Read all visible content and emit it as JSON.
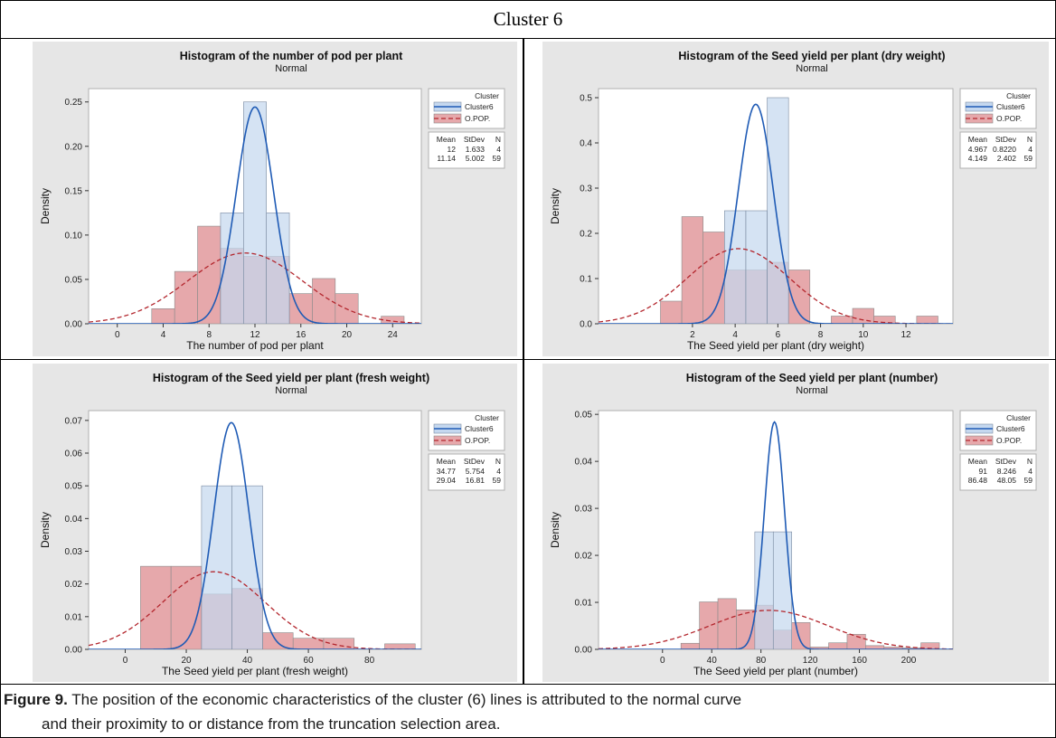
{
  "cluster_title": "Cluster 6",
  "caption": {
    "label": "Figure 9.",
    "text1": " The position of the economic characteristics of the cluster (6) lines is attributed to the normal curve",
    "text2": "and their proximity to or distance from the truncation selection area."
  },
  "colors": {
    "cluster_fill": "#c5d8ef",
    "cluster_line": "#1f5bb5",
    "pop_fill": "#e6a8ab",
    "pop_line": "#b3262d",
    "overlap_fill": "#c4a5ad",
    "panel_bg": "#e6e6e6"
  },
  "chart_data": [
    {
      "type": "bar",
      "title": "Histogram of the number of pod per plant",
      "subtitle": "Normal",
      "xlabel": "The number of pod per plant",
      "ylabel": "Density",
      "xlim": [
        -2.5,
        26.5
      ],
      "ylim": [
        0,
        0.265
      ],
      "xticks": [
        0,
        4,
        8,
        12,
        16,
        20,
        24
      ],
      "yticks": [
        0,
        0.05,
        0.1,
        0.15,
        0.2,
        0.25
      ],
      "ytick_labels": [
        "0.00",
        "0.05",
        "0.10",
        "0.15",
        "0.20",
        "0.25"
      ],
      "legend_title": "Cluster",
      "series": [
        {
          "name": "Cluster6",
          "role": "cluster",
          "bin_edges": [
            9,
            11,
            13,
            15
          ],
          "values": [
            0.125,
            0.25,
            0.125
          ]
        },
        {
          "name": "O.POP.",
          "role": "pop",
          "bin_edges": [
            3,
            5,
            7,
            9,
            11,
            13,
            15,
            17,
            19,
            21,
            23,
            25
          ],
          "values": [
            0.017,
            0.059,
            0.11,
            0.085,
            0.076,
            0.076,
            0.034,
            0.051,
            0.034,
            0.0,
            0.0085,
            0.025
          ]
        }
      ],
      "stats_header": [
        "Mean",
        "StDev",
        "N"
      ],
      "stats": [
        {
          "mean": "12",
          "stdev": "1.633",
          "n": "4"
        },
        {
          "mean": "11.14",
          "stdev": "5.002",
          "n": "59"
        }
      ]
    },
    {
      "type": "bar",
      "title": "Histogram of the Seed yield per plant (dry weight)",
      "subtitle": "Normal",
      "xlabel": "The Seed yield per plant (dry weight)",
      "ylabel": "Density",
      "xlim": [
        -2.4,
        14.2
      ],
      "ylim": [
        0,
        0.52
      ],
      "xticks": [
        2,
        4,
        6,
        8,
        10,
        12
      ],
      "yticks": [
        0,
        0.1,
        0.2,
        0.3,
        0.4,
        0.5
      ],
      "ytick_labels": [
        "0.0",
        "0.1",
        "0.2",
        "0.3",
        "0.4",
        "0.5"
      ],
      "legend_title": "Cluster",
      "series": [
        {
          "name": "Cluster6",
          "role": "cluster",
          "bin_edges": [
            3.5,
            4.5,
            5.5,
            6.5
          ],
          "values": [
            0.25,
            0.25,
            0.5
          ]
        },
        {
          "name": "O.POP.",
          "role": "pop",
          "bin_edges": [
            0.5,
            1.5,
            2.5,
            3.5,
            4.5,
            5.5,
            6.5,
            7.5,
            8.5,
            9.5,
            10.5,
            11.5,
            12.5,
            13.5
          ],
          "values": [
            0.05,
            0.237,
            0.203,
            0.119,
            0.119,
            0.136,
            0.119,
            0.0,
            0.017,
            0.034,
            0.017,
            0.0,
            0.017
          ]
        }
      ],
      "stats_header": [
        "Mean",
        "StDev",
        "N"
      ],
      "stats": [
        {
          "mean": "4.967",
          "stdev": "0.8220",
          "n": "4"
        },
        {
          "mean": "4.149",
          "stdev": "2.402",
          "n": "59"
        }
      ]
    },
    {
      "type": "bar",
      "title": "Histogram of the Seed yield per plant (fresh weight)",
      "subtitle": "Normal",
      "xlabel": "The Seed yield per plant (fresh weight)",
      "ylabel": "Density",
      "xlim": [
        -12,
        97
      ],
      "ylim": [
        0,
        0.073
      ],
      "xticks": [
        0,
        20,
        40,
        60,
        80
      ],
      "yticks": [
        0,
        0.01,
        0.02,
        0.03,
        0.04,
        0.05,
        0.06,
        0.07
      ],
      "ytick_labels": [
        "0.00",
        "0.01",
        "0.02",
        "0.03",
        "0.04",
        "0.05",
        "0.06",
        "0.07"
      ],
      "legend_title": "Cluster",
      "series": [
        {
          "name": "Cluster6",
          "role": "cluster",
          "bin_edges": [
            25,
            35,
            45
          ],
          "values": [
            0.05,
            0.05
          ]
        },
        {
          "name": "O.POP.",
          "role": "pop",
          "bin_edges": [
            5,
            15,
            25,
            35,
            45,
            55,
            65,
            75,
            85,
            95
          ],
          "values": [
            0.0254,
            0.0254,
            0.0169,
            0.0186,
            0.0051,
            0.0034,
            0.0034,
            0.0,
            0.0017
          ]
        }
      ],
      "stats_header": [
        "Mean",
        "StDev",
        "N"
      ],
      "stats": [
        {
          "mean": "34.77",
          "stdev": "5.754",
          "n": "4"
        },
        {
          "mean": "29.04",
          "stdev": "16.81",
          "n": "59"
        }
      ]
    },
    {
      "type": "bar",
      "title": "Histogram of the Seed yield per plant (number)",
      "subtitle": "Normal",
      "xlabel": "The Seed yield per plant (number)",
      "ylabel": "Density",
      "xlim": [
        -52,
        236
      ],
      "ylim": [
        0,
        0.0508
      ],
      "xticks": [
        0,
        40,
        80,
        120,
        160,
        200
      ],
      "yticks": [
        0,
        0.01,
        0.02,
        0.03,
        0.04,
        0.05
      ],
      "ytick_labels": [
        "0.00",
        "0.01",
        "0.02",
        "0.03",
        "0.04",
        "0.05"
      ],
      "legend_title": "Cluster",
      "series": [
        {
          "name": "Cluster6",
          "role": "cluster",
          "bin_edges": [
            75,
            90,
            105
          ],
          "values": [
            0.025,
            0.025
          ]
        },
        {
          "name": "O.POP.",
          "role": "pop",
          "bin_edges": [
            15,
            30,
            45,
            60,
            75,
            90,
            105,
            120,
            135,
            150,
            165,
            180,
            195,
            210,
            225
          ],
          "values": [
            0.0013,
            0.0101,
            0.0108,
            0.0084,
            0.0094,
            0.0041,
            0.0057,
            0.0005,
            0.0014,
            0.0032,
            0.0008,
            0.0005,
            0.0003,
            0.0014
          ]
        }
      ],
      "stats_header": [
        "Mean",
        "StDev",
        "N"
      ],
      "stats": [
        {
          "mean": "91",
          "stdev": "8.246",
          "n": "4"
        },
        {
          "mean": "86.48",
          "stdev": "48.05",
          "n": "59"
        }
      ]
    }
  ]
}
